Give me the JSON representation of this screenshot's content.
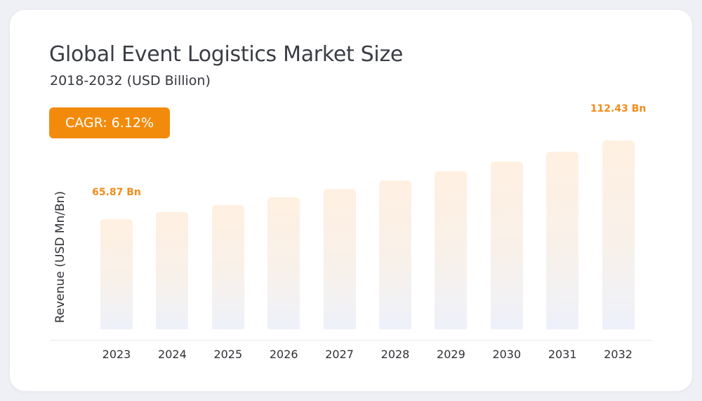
{
  "header": {
    "title": "Global Event Logistics Market Size",
    "subtitle": "2018-2032 (USD Billion)",
    "cagr_badge": "CAGR: 6.12%"
  },
  "colors": {
    "accent": "#f28b0c",
    "label": "#ef8d1c",
    "bar_top": "#fff0e1",
    "bar_bottom": "#eef1fa",
    "text": "#3a3d44"
  },
  "chart_data": {
    "type": "bar",
    "title": "Global Event Logistics Market Size",
    "subtitle": "2018-2032 (USD Billion)",
    "xlabel": "",
    "ylabel": "Revenue (USD Mn/Bn)",
    "categories": [
      "2023",
      "2024",
      "2025",
      "2026",
      "2027",
      "2028",
      "2029",
      "2030",
      "2031",
      "2032"
    ],
    "values": [
      65.87,
      69.9,
      74.2,
      78.7,
      83.5,
      88.6,
      94.1,
      99.8,
      105.9,
      112.43
    ],
    "data_labels": [
      {
        "category": "2023",
        "text": "65.87 Bn"
      },
      {
        "category": "2032",
        "text": "112.43 Bn"
      }
    ],
    "annotation": "CAGR: 6.12%",
    "ylim": [
      0,
      120
    ],
    "grid": false,
    "legend": null
  }
}
